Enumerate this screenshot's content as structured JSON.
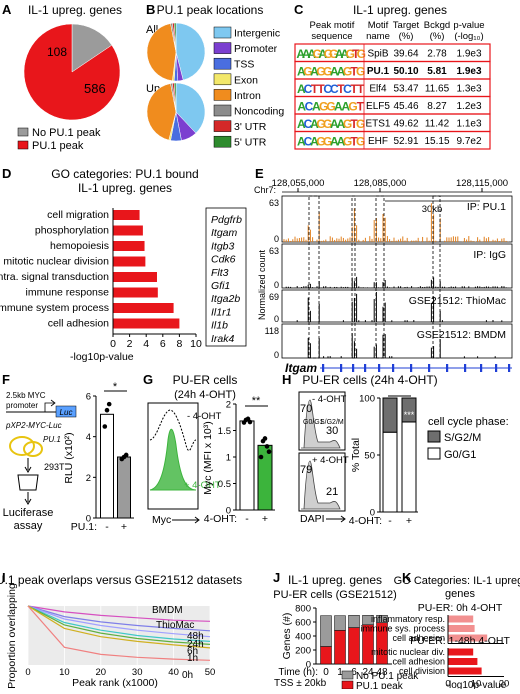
{
  "panels": {
    "A": {
      "letter": "A",
      "title": "IL-1 upreg. genes",
      "legend": [
        "No PU.1 peak",
        "PU.1 peak"
      ]
    },
    "B": {
      "letter": "B",
      "title": "PU.1 peak locations",
      "labels": [
        "All",
        "Up"
      ]
    },
    "C": {
      "letter": "C",
      "title": "IL-1 upreg. genes",
      "headers": [
        "Peak motif sequence",
        "Motif name",
        "Target (%)",
        "Bckgd (%)",
        "p-value (-log10)"
      ],
      "header_lines": [
        [
          "Peak motif",
          "sequence"
        ],
        [
          "Motif",
          "name"
        ],
        [
          "Target",
          "(%)"
        ],
        [
          "Bckgd",
          "(%)"
        ],
        [
          "p-value",
          "(-log₁₀)"
        ]
      ],
      "logos": [
        "AAAGAGGAAGTG",
        "AGAGGAAGTG",
        "ACTTCCTCTT",
        "ACAGGAAGT",
        "ACAGGAAGTG",
        "ACAGGAAGTG"
      ],
      "rows": [
        [
          "SpiB",
          "39.64",
          "2.78",
          "1.9e3"
        ],
        [
          "PU.1",
          "50.10",
          "5.81",
          "1.9e3"
        ],
        [
          "Elf4",
          "53.47",
          "11.65",
          "1.3e3"
        ],
        [
          "ELF5",
          "45.46",
          "8.27",
          "1.2e3"
        ],
        [
          "ETS1",
          "49.62",
          "11.42",
          "1.1e3"
        ],
        [
          "EHF",
          "52.91",
          "15.15",
          "9.7e2"
        ]
      ]
    },
    "D": {
      "letter": "D",
      "title_lines": [
        "GO categories: PU.1 bound",
        "IL-1 upreg. genes"
      ],
      "xlabel": "-log10p-value",
      "gene_list": [
        "Pdgfrb",
        "Itgam",
        "Itgb3",
        "Cdk6",
        "Flt3",
        "Gfi1",
        "Itga2b",
        "Il1r1",
        "Il1b",
        "Irak4"
      ]
    },
    "E": {
      "letter": "E",
      "chrom": "Chr7:",
      "coords": [
        "128,055,000",
        "128,085,000",
        "128,115,000"
      ],
      "scale": "30kb",
      "tracks": [
        "IP: PU.1",
        "IP: IgG",
        "GSE21512: ThioMac",
        "GSE21512: BMDM"
      ],
      "track_max": [
        "63",
        "63",
        "69",
        "118"
      ],
      "ylabel": "Normalized count",
      "gene": "Itgam"
    },
    "F": {
      "letter": "F",
      "construct": "2.5kb MYC promoter",
      "construct_lines": [
        "2.5kb MYC",
        "promoter"
      ],
      "luc": "Luc",
      "plasmid": "pXP2-MYC-Luc",
      "pu1": "PU.1",
      "cell": "293T",
      "assay_lines": [
        "Luciferase",
        "assay"
      ],
      "ylabel": "RLU (x10²)",
      "xlabel": "PU.1:",
      "ticks": [
        "-",
        "+"
      ],
      "sig": "*"
    },
    "G": {
      "letter": "G",
      "title": "PU-ER cells",
      "subtitle": "(24h 4-OHT)",
      "minus": "- 4-OHT",
      "plus": "+ 4-OHT",
      "myc": "Myc",
      "ylabel": "Myc (MFI x 10³)",
      "xlabel": "4-OHT:",
      "ticks": [
        "-",
        "+"
      ],
      "sig": "**"
    },
    "H": {
      "letter": "H",
      "title": "PU-ER cells (24h 4-OHT)",
      "minus": "- 4-OHT",
      "plus": "+ 4-OHT",
      "gates_minus": [
        "70",
        "30"
      ],
      "gates_plus": [
        "79",
        "21"
      ],
      "g0": "G0/G1",
      "sg2m": "S/G2/M",
      "dapi": "DAPI",
      "ylabel": "% Total",
      "xlabel": "4-OHT:",
      "ticks": [
        "-",
        "+"
      ],
      "sig": "***",
      "legend_title": "cell cycle phase:",
      "legend": [
        "S/G2/M",
        "G0/G1"
      ]
    },
    "I": {
      "letter": "I",
      "title": "PU.1 peak overlaps versus GSE21512 datasets",
      "xlabel": "Peak rank (x1000)",
      "ylabel": "Proportion overlapping"
    },
    "J": {
      "letter": "J",
      "title": "IL-1 upreg. genes",
      "subtitle": "PU-ER cells (GSE21512)",
      "ylabel": "Genes (#)",
      "xlabel": "Time (h):",
      "tss": "TSS ± 20kb",
      "legend": [
        "No PU.1 peak",
        "PU.1 peak"
      ]
    },
    "K": {
      "letter": "K",
      "title_lines": [
        "GO Categories: IL-1 upreg.",
        "genes"
      ],
      "sub1": "PU-ER: 0h 4-OHT",
      "sub2": "PU-ER: 1-48h 4-OHT",
      "xlabel": "-log10p-value"
    }
  },
  "colors": {
    "red": "#e8161b",
    "gray": "#9b9b9b",
    "lightred": "#f29090",
    "green": "#3cb43c"
  },
  "chart_data": [
    {
      "panel": "A",
      "type": "pie",
      "title": "IL-1 upreg. genes",
      "labels": [
        "No PU.1 peak",
        "PU.1 peak"
      ],
      "values": [
        108,
        586
      ],
      "colors": [
        "#9b9b9b",
        "#e8161b"
      ]
    },
    {
      "panel": "B",
      "type": "pie",
      "title": "PU.1 peak locations",
      "legend": [
        "Intergenic",
        "Promoter",
        "TSS",
        "Exon",
        "Intron",
        "Noncoding",
        "3' UTR",
        "5' UTR"
      ],
      "colors": [
        "#7ec8f0",
        "#7b3fd0",
        "#4a6ee0",
        "#f3e86a",
        "#f08c1e",
        "#8c8c8c",
        "#d42828",
        "#2e8b2e"
      ],
      "series": [
        {
          "name": "All",
          "values": [
            46,
            3,
            2,
            1,
            45,
            1,
            1,
            1
          ]
        },
        {
          "name": "Up",
          "values": [
            38,
            9,
            6,
            1,
            43,
            1,
            1,
            1
          ]
        }
      ]
    },
    {
      "panel": "D",
      "type": "bar",
      "orientation": "horizontal",
      "categories": [
        "cell migration",
        "phosphorylation",
        "hemopoiesis",
        "mitotic nuclear division",
        "intra. signal transduction",
        "immune response",
        "immune system process",
        "cell adhesion"
      ],
      "values": [
        3.2,
        3.6,
        3.8,
        3.9,
        5.3,
        5.4,
        7.3,
        8.0
      ],
      "xlim": [
        0,
        10
      ],
      "xticks": [
        0,
        2,
        4,
        6,
        8,
        10
      ]
    },
    {
      "panel": "F",
      "type": "bar",
      "categories": [
        "-",
        "+"
      ],
      "values": [
        5.1,
        3.0
      ],
      "points": [
        [
          4.5,
          5.3,
          5.6
        ],
        [
          2.9,
          3.0,
          3.1
        ]
      ],
      "ylim": [
        0,
        6
      ],
      "yticks": [
        0,
        2,
        4,
        6
      ]
    },
    {
      "panel": "G",
      "type": "bar",
      "categories": [
        "-",
        "+"
      ],
      "values": [
        1.68,
        1.22
      ],
      "points": [
        [
          1.65,
          1.7,
          1.72,
          1.66
        ],
        [
          1.0,
          1.3,
          1.35,
          1.2,
          1.1
        ]
      ],
      "ylim": [
        0,
        2.0
      ],
      "yticks": [
        0,
        0.5,
        1.0,
        1.5,
        2.0
      ]
    },
    {
      "panel": "H",
      "type": "bar",
      "stacked": true,
      "categories": [
        "-",
        "+"
      ],
      "series": [
        {
          "name": "G0/G1",
          "values": [
            70,
            79
          ]
        },
        {
          "name": "S/G2/M",
          "values": [
            30,
            21
          ]
        }
      ],
      "ylim": [
        0,
        100
      ],
      "yticks": [
        0,
        50,
        100
      ]
    },
    {
      "panel": "I",
      "type": "line",
      "xlim": [
        0,
        50
      ],
      "ylim": [
        0,
        1
      ],
      "xticks": [
        0,
        10,
        20,
        30,
        40,
        50
      ],
      "series": [
        {
          "name": "BMDM",
          "x": [
            0,
            10,
            20,
            30,
            40,
            50
          ],
          "y": [
            1.0,
            0.9,
            0.84,
            0.8,
            0.76,
            0.74
          ]
        },
        {
          "name": "ThioMac",
          "x": [
            0,
            10,
            20,
            30,
            40,
            50
          ],
          "y": [
            1.0,
            0.82,
            0.73,
            0.67,
            0.62,
            0.58
          ]
        },
        {
          "name": "48h",
          "x": [
            0,
            10,
            20,
            30,
            40,
            50
          ],
          "y": [
            1.0,
            0.78,
            0.67,
            0.59,
            0.53,
            0.48
          ]
        },
        {
          "name": "24h",
          "x": [
            0,
            10,
            20,
            30,
            40,
            50
          ],
          "y": [
            1.0,
            0.72,
            0.59,
            0.5,
            0.44,
            0.4
          ]
        },
        {
          "name": "6h",
          "x": [
            0,
            10,
            20,
            30,
            40,
            50
          ],
          "y": [
            1.0,
            0.68,
            0.54,
            0.45,
            0.39,
            0.35
          ]
        },
        {
          "name": "1h",
          "x": [
            0,
            10,
            20,
            30,
            40,
            50
          ],
          "y": [
            1.0,
            0.62,
            0.48,
            0.4,
            0.34,
            0.29
          ]
        },
        {
          "name": "0h",
          "x": [
            0,
            10,
            20,
            30,
            40,
            50
          ],
          "y": [
            1.0,
            0.3,
            0.18,
            0.13,
            0.1,
            0.08
          ]
        }
      ],
      "colors": [
        "#d64fc0",
        "#7f7fe8",
        "#a0a0ff",
        "#40c8c8",
        "#60b040",
        "#d0b020",
        "#f08080"
      ]
    },
    {
      "panel": "J",
      "type": "bar",
      "stacked": true,
      "categories": [
        "0",
        "1",
        "6",
        "24",
        "48"
      ],
      "series": [
        {
          "name": "PU.1 peak",
          "values": [
            250,
            480,
            520,
            560,
            590
          ]
        },
        {
          "name": "No PU.1 peak",
          "values": [
            440,
            210,
            175,
            135,
            105
          ]
        }
      ],
      "ylim": [
        0,
        800
      ],
      "yticks": [
        0,
        200,
        400,
        600,
        800
      ]
    },
    {
      "panel": "K",
      "type": "bar",
      "orientation": "horizontal",
      "xlim": [
        0,
        20
      ],
      "xticks": [
        0,
        10,
        20
      ],
      "groups": [
        {
          "name": "PU-ER: 0h 4-OHT",
          "categories": [
            "inflammatory resp.",
            "immune sys. process",
            "cell adhesion"
          ],
          "values": [
            9,
            9.5,
            14
          ]
        },
        {
          "name": "PU-ER: 1-48h 4-OHT",
          "categories": [
            "mitotic nuclear div.",
            "cell adhesion",
            "cell division"
          ],
          "values": [
            9,
            10.5,
            12
          ]
        }
      ]
    }
  ]
}
